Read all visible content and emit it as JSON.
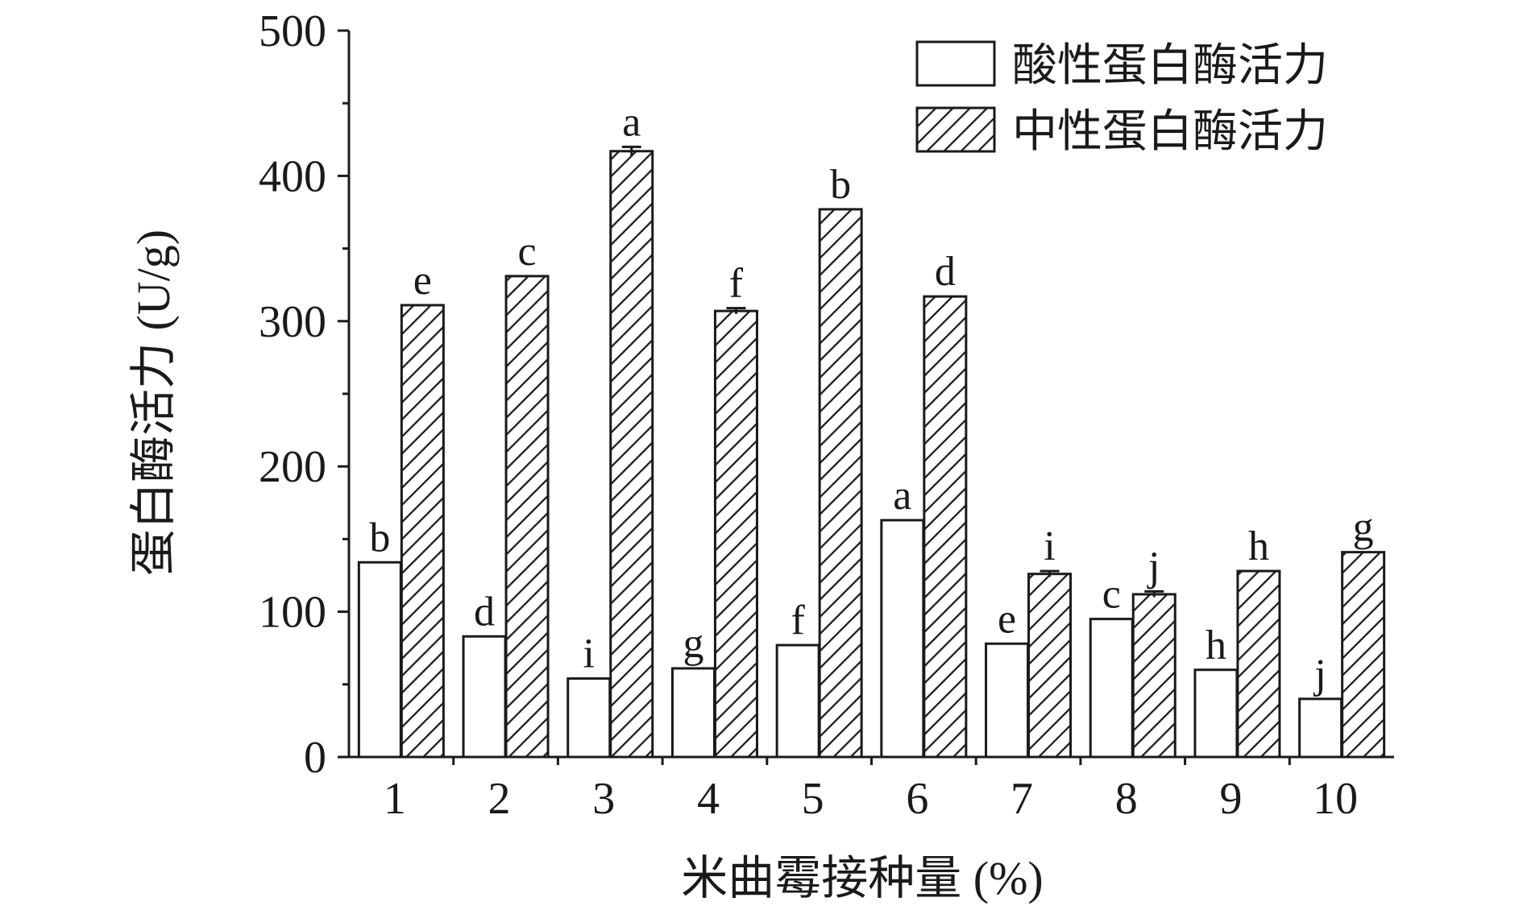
{
  "chart_data": {
    "type": "bar",
    "xlabel": "米曲霉接种量 (%)",
    "ylabel": "蛋白酶活力 (U/g)",
    "ylim": [
      0,
      500
    ],
    "yticks": [
      "0",
      "100",
      "200",
      "300",
      "400",
      "500"
    ],
    "categories": [
      "1",
      "2",
      "3",
      "4",
      "5",
      "6",
      "7",
      "8",
      "9",
      "10"
    ],
    "legend_position": "top-right",
    "series": [
      {
        "name": "酸性蛋白酶活力",
        "pattern": "plain",
        "fill": "#ffffff",
        "values": [
          134,
          83,
          54,
          61,
          77,
          163,
          78,
          95,
          60,
          40
        ],
        "errors": [
          0,
          0,
          0,
          0,
          0,
          0,
          0,
          0,
          0,
          0
        ],
        "letters": [
          "b",
          "d",
          "i",
          "g",
          "f",
          "a",
          "e",
          "c",
          "h",
          "j"
        ]
      },
      {
        "name": "中性蛋白酶活力",
        "pattern": "hatched",
        "fill": "#ffffff",
        "values": [
          311,
          331,
          417,
          307,
          377,
          317,
          126,
          112,
          128,
          141
        ],
        "errors": [
          0,
          0,
          3,
          2,
          0,
          0,
          2,
          2,
          0,
          0
        ],
        "letters": [
          "e",
          "c",
          "a",
          "f",
          "b",
          "d",
          "i",
          "j",
          "h",
          "g"
        ]
      }
    ],
    "colors": {
      "ink": "#1a1a1a",
      "background": "#ffffff"
    }
  }
}
